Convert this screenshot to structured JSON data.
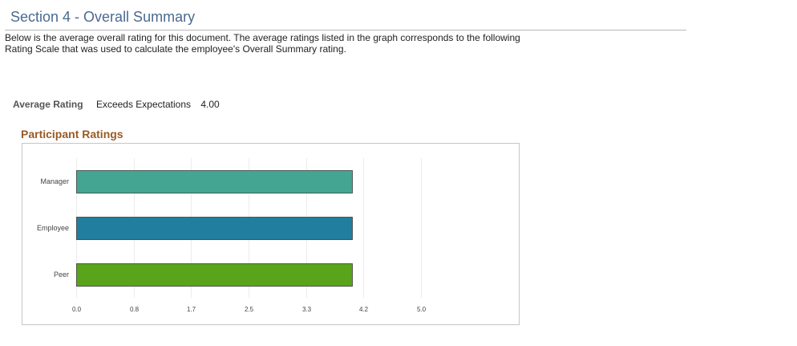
{
  "section": {
    "title": "Section 4 - Overall Summary",
    "description": "Below is the average overall rating for this document. The average ratings listed in the graph corresponds to the following Rating Scale that was used to calculate the employee's Overall Summary rating."
  },
  "average": {
    "label": "Average Rating",
    "text": "Exceeds Expectations",
    "value": "4.00"
  },
  "chart_heading": "Participant Ratings",
  "chart_data": {
    "type": "bar",
    "orientation": "horizontal",
    "title": "Participant Ratings",
    "categories": [
      "Manager",
      "Employee",
      "Peer"
    ],
    "values": [
      4.0,
      4.0,
      4.0
    ],
    "colors": [
      "#45a593",
      "#227e9e",
      "#5aa41b"
    ],
    "xlim": [
      0,
      5.0
    ],
    "x_ticks": [
      "0.0",
      "0.8",
      "1.7",
      "2.5",
      "3.3",
      "4.2",
      "5.0"
    ],
    "grid": true,
    "legend": "none"
  }
}
